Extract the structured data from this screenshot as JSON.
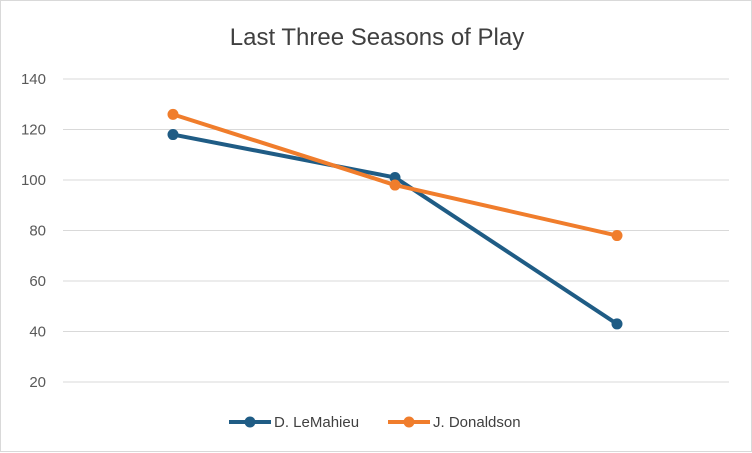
{
  "chart_data": {
    "type": "line",
    "title": "Last Three Seasons of Play",
    "categories": [
      "",
      "",
      ""
    ],
    "series": [
      {
        "name": "D. LeMahieu",
        "values": [
          118,
          101,
          43
        ],
        "color": "#1f5c85"
      },
      {
        "name": "J. Donaldson",
        "values": [
          126,
          98,
          78
        ],
        "color": "#f07d2c"
      }
    ],
    "yticks": [
      20,
      40,
      60,
      80,
      100,
      120,
      140
    ],
    "ylim": [
      20,
      140
    ],
    "grid": true,
    "legend": "bottom"
  }
}
